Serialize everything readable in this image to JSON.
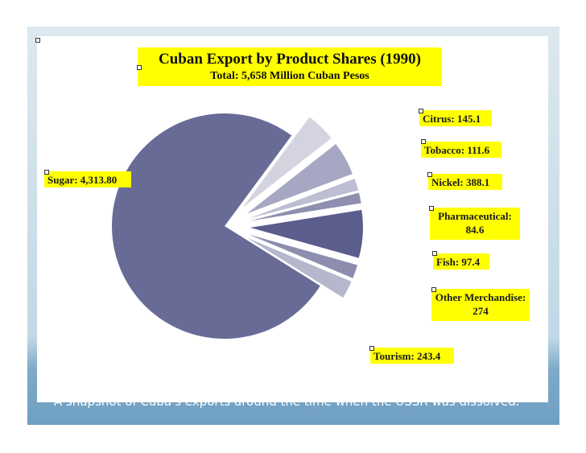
{
  "slide": {
    "caption": "A snapshot of Cuba's exports around the time when the USSR was dissolved."
  },
  "chart_data": {
    "type": "pie",
    "title": "Cuban Export by Product Shares (1990)",
    "subtitle": "Total: 5,658 Million Cuban Pesos",
    "slices": [
      {
        "label": "Sugar: 4,313.80",
        "value": 4313.8,
        "color": "#696b97"
      },
      {
        "label": "Tourism: 243.4",
        "value": 243.4,
        "color": "#d3d4e0"
      },
      {
        "label": "Other Merchandise: 274",
        "value": 274,
        "color": "#a6a7c3"
      },
      {
        "label": "Fish: 97.4",
        "value": 97.4,
        "color": "#bdbed2"
      },
      {
        "label": "Pharmaceutical: 84.6",
        "value": 84.6,
        "color": "#8e8faf"
      },
      {
        "label": "Nickel: 388.1",
        "value": 388.1,
        "color": "#5b5d8d"
      },
      {
        "label": "Tobacco: 111.6",
        "value": 111.6,
        "color": "#8d8eae"
      },
      {
        "label": "Citrus: 145.1",
        "value": 145.1,
        "color": "#b6b7cd"
      }
    ]
  }
}
